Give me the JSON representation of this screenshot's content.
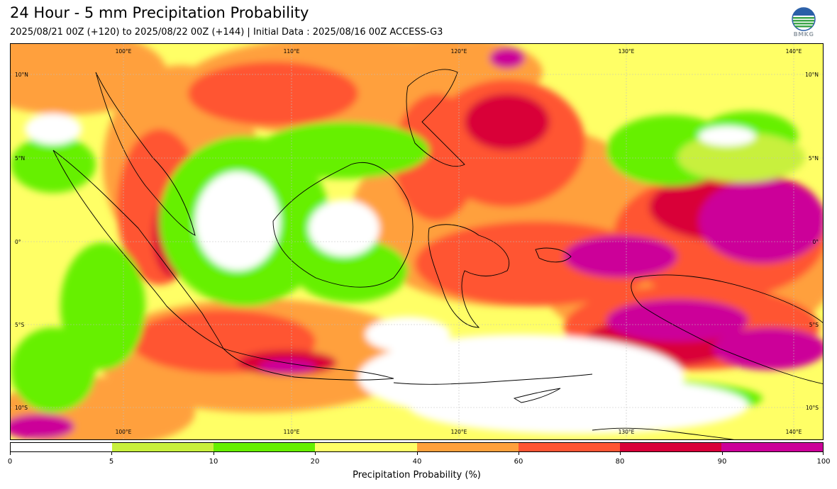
{
  "header": {
    "title": "24 Hour - 5 mm Precipitation Probability",
    "subtitle": "2025/08/21 00Z (+120) to 2025/08/22 00Z (+144) | Initial Data : 2025/08/16 00Z ACCESS-G3",
    "logo_text": "BMKG"
  },
  "map": {
    "lon_labels": [
      "100°E",
      "110°E",
      "120°E",
      "130°E",
      "140°E"
    ],
    "lat_labels": [
      "10°N",
      "5°N",
      "0°",
      "5°S",
      "10°S"
    ],
    "land_outline_color": "#000000"
  },
  "colorbar": {
    "title": "Precipitation Probability (%)",
    "ticks": [
      "0",
      "5",
      "10",
      "20",
      "40",
      "60",
      "80",
      "90",
      "100"
    ],
    "colors": [
      "#ffffff",
      "#c8f03c",
      "#66f000",
      "#ffff66",
      "#ffa03c",
      "#ff5533",
      "#d90038",
      "#cc0099"
    ]
  }
}
